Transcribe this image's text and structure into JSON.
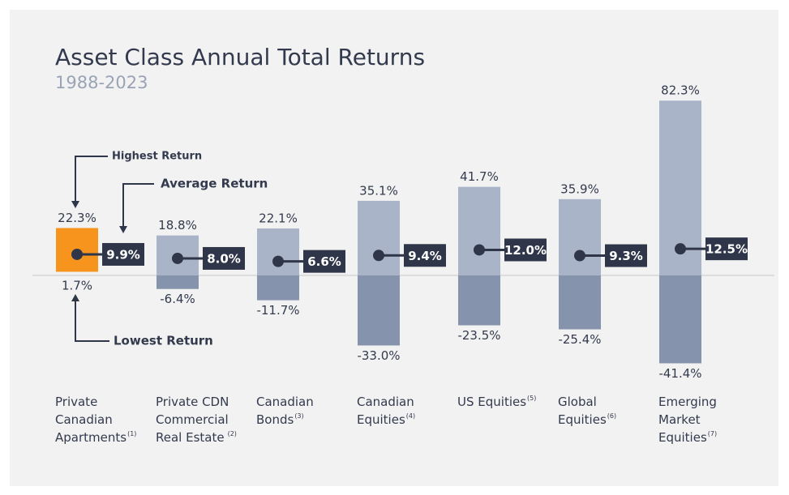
{
  "chart_data": {
    "type": "range-bar",
    "title": "Asset Class Annual Total Returns",
    "subtitle": "1988-2023",
    "categories": [
      [
        "Private",
        "Canadian",
        "Apartments"
      ],
      [
        "Private CDN",
        "Commercial",
        "Real Estate"
      ],
      [
        "Canadian",
        "Bonds"
      ],
      [
        "Canadian",
        "Equities"
      ],
      [
        "US Equities"
      ],
      [
        "Global",
        "Equities"
      ],
      [
        "Emerging",
        "Market",
        "Equities"
      ]
    ],
    "notes": [
      "(1)",
      "(2)",
      "(3)",
      "(4)",
      "(5)",
      "(6)",
      "(7)"
    ],
    "series": [
      {
        "name": "Highest Return",
        "color": "#aab4c8",
        "highlight_color": "#f7941d",
        "values": [
          22.3,
          18.8,
          22.1,
          35.1,
          41.7,
          35.9,
          82.3
        ],
        "value_labels": [
          "22.3%",
          "18.8%",
          "22.1%",
          "35.1%",
          "41.7%",
          "35.9%",
          "82.3%"
        ]
      },
      {
        "name": "Lowest Return",
        "color": "#8593ad",
        "values": [
          1.7,
          -6.4,
          -11.7,
          -33.0,
          -23.5,
          -25.4,
          -41.4
        ],
        "value_labels": [
          "1.7%",
          "-6.4%",
          "-11.7%",
          "-33.0%",
          "-23.5%",
          "-25.4%",
          "-41.4%"
        ]
      },
      {
        "name": "Average Return",
        "color": "#30364a",
        "values": [
          9.9,
          8.0,
          6.6,
          9.4,
          12.0,
          9.3,
          12.5
        ],
        "value_labels": [
          "9.9%",
          "8.0%",
          "6.6%",
          "9.4%",
          "12.0%",
          "9.3%",
          "12.5%"
        ]
      }
    ],
    "ylim": [
      -50,
      90
    ]
  }
}
